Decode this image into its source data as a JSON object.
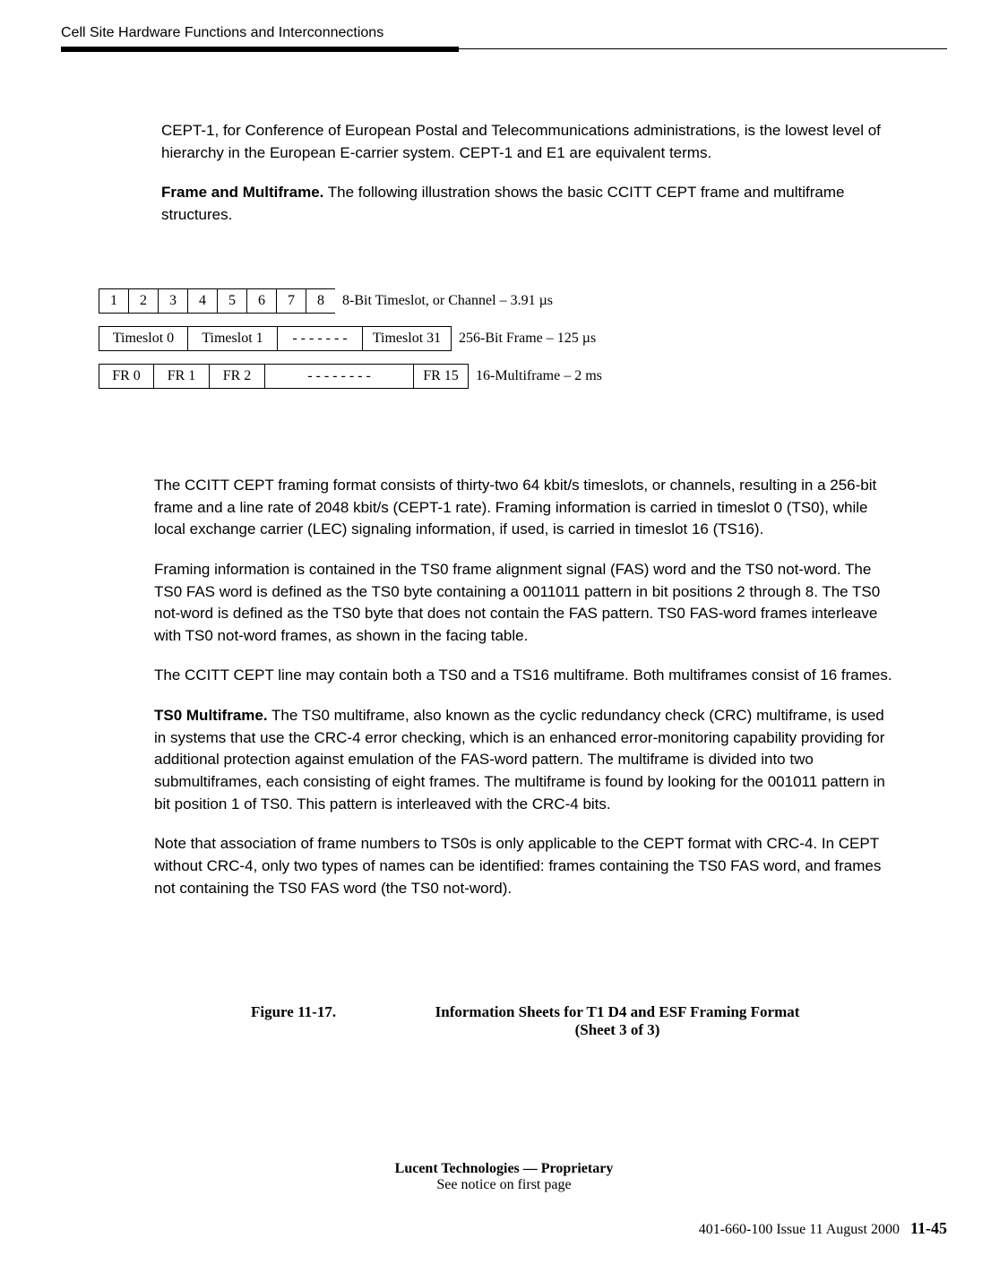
{
  "header": {
    "left": "Cell Site Hardware Functions and Interconnections",
    "right": ""
  },
  "intro": {
    "p1": "CEPT-1, for Conference of European Postal and Telecommunications administrations, is the lowest level of hierarchy in the European E-carrier system. CEPT-1 and E1 are equivalent terms.",
    "p2_bold": "Frame and Multiframe.",
    "p2_rest": " The following illustration shows the basic CCITT CEPT frame and multiframe structures."
  },
  "diagram": {
    "bits": [
      "1",
      "2",
      "3",
      "4",
      "5",
      "6",
      "7",
      "8"
    ],
    "bits_label": "8-Bit Timeslot, or Channel – 3.91 µs",
    "ts0": "Timeslot 0",
    "ts1": "Timeslot 1",
    "ts_dots": "- - - - - - -",
    "ts31": "Timeslot 31",
    "ts_label": "256-Bit Frame – 125 µs",
    "fr0": "FR 0",
    "fr1": "FR 1",
    "fr2": "FR 2",
    "fr_dots": "- - - - - - - -",
    "fr15": "FR 15",
    "fr_label": "16-Multiframe – 2 ms"
  },
  "body": {
    "p1": "The CCITT CEPT framing format consists of thirty-two 64 kbit/s timeslots, or channels, resulting in a 256-bit frame and a line rate of 2048 kbit/s (CEPT-1 rate). Framing information is carried in timeslot 0 (TS0), while local exchange carrier (LEC) signaling information, if used, is carried in timeslot 16 (TS16).",
    "p2": "Framing information is contained in the TS0 frame alignment signal (FAS) word and the TS0 not-word. The TS0 FAS word is defined as the TS0 byte containing a 0011011 pattern in bit positions 2 through 8. The TS0 not-word is defined as the TS0 byte that does not contain the FAS pattern. TS0 FAS-word frames interleave with TS0 not-word frames, as shown in the facing table.",
    "p3": "The CCITT CEPT line may contain both a TS0 and a TS16 multiframe. Both multiframes consist of 16 frames.",
    "p4_bold": "TS0 Multiframe.",
    "p4_rest": " The TS0 multiframe, also known as the cyclic redundancy check (CRC) multiframe, is used in systems that use the CRC-4 error checking, which is an enhanced error-monitoring capability providing for additional protection against emulation of the FAS-word pattern. The multiframe is divided into two submultiframes, each consisting of eight frames. The multiframe is found by looking for the 001011 pattern in bit position 1 of TS0. This pattern is interleaved with the CRC-4 bits.",
    "p5": "Note that association of frame numbers to TS0s is only applicable to the CEPT format with CRC-4. In CEPT without CRC-4, only two types of names can be identified: frames containing the TS0 FAS word, and frames not containing the TS0 FAS word (the TS0 not-word)."
  },
  "figure": {
    "label": "Figure 11-17.",
    "title_line1": "Information Sheets for T1 D4 and ESF Framing Format",
    "title_line2": "(Sheet 3 of 3)"
  },
  "footer": {
    "proprietary_bold": "Lucent Technologies — Proprietary",
    "proprietary_sub": "See notice on first page",
    "issue": "401-660-100 Issue 11    August 2000",
    "page": "11-45"
  }
}
